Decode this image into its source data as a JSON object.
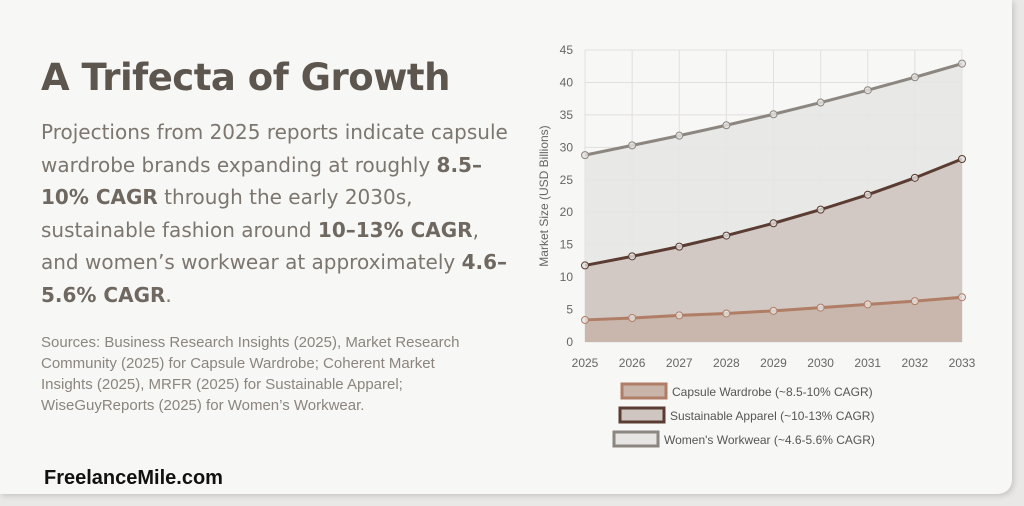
{
  "heading": "A Trifecta of Growth",
  "paragraph": {
    "p1": "Projections from 2025 reports indicate capsule wardrobe brands expanding at roughly ",
    "b1": "8.5–10% CAGR",
    "p2": " through the early 2030s, sustainable fashion around ",
    "b2": "10–13% CAGR",
    "p3": ", and women’s workwear at approximately ",
    "b3": "4.6–5.6% CAGR",
    "p4": "."
  },
  "sources": "Sources: Business Research Insights (2025), Market Research Community (2025) for Capsule Wardrobe; Coherent Market Insights (2025), MRFR (2025) for Sustainable Apparel; WiseGuyReports (2025) for Women’s Workwear.",
  "brand": "FreelanceMile.com",
  "chart_data": {
    "type": "area",
    "title": "",
    "xlabel": "",
    "ylabel": "Market Size (USD Billions)",
    "ylim": [
      0,
      45
    ],
    "yticks": [
      "0",
      "5",
      "10",
      "15",
      "20",
      "25",
      "30",
      "35",
      "40",
      "45"
    ],
    "x": [
      "2025",
      "2026",
      "2027",
      "2028",
      "2029",
      "2030",
      "2031",
      "2032",
      "2033"
    ],
    "grid": true,
    "legend_placement": "bottom",
    "series": [
      {
        "name": "Capsule Wardrobe (~8.5-10% CAGR)",
        "values": [
          3.4,
          3.7,
          4.1,
          4.4,
          4.8,
          5.3,
          5.8,
          6.3,
          6.9
        ],
        "line": "#b07e66",
        "fill": "#c8b4a8"
      },
      {
        "name": "Sustainable Apparel (~10-13% CAGR)",
        "values": [
          11.8,
          13.2,
          14.7,
          16.4,
          18.3,
          20.4,
          22.7,
          25.3,
          28.2
        ],
        "line": "#5a3c32",
        "fill": "#cfc5c1"
      },
      {
        "name": "Women's Workwear (~4.6-5.6% CAGR)",
        "values": [
          28.8,
          30.3,
          31.8,
          33.4,
          35.1,
          36.9,
          38.8,
          40.8,
          42.9
        ],
        "line": "#8c8680",
        "fill": "#e6e5e4"
      }
    ]
  }
}
